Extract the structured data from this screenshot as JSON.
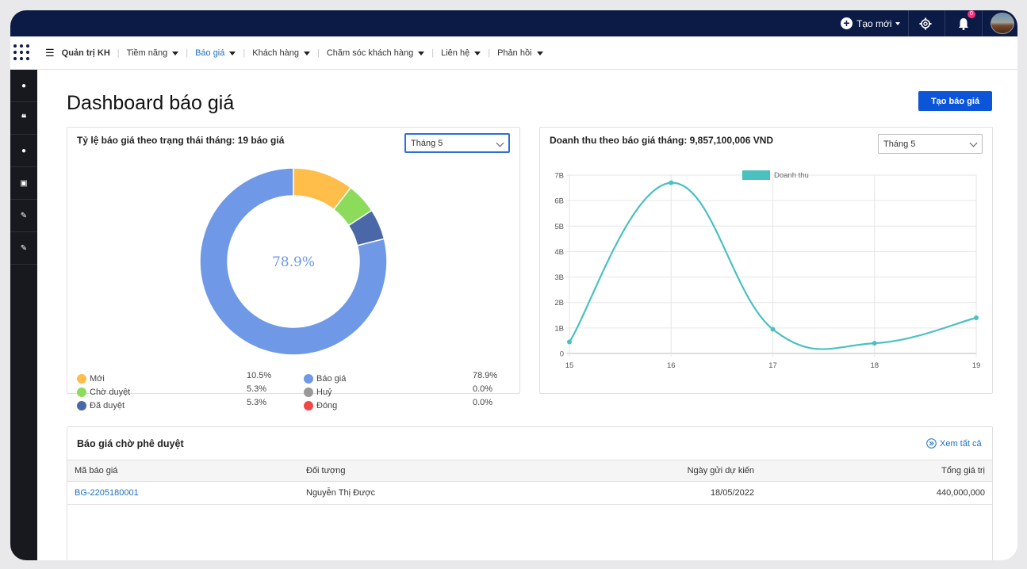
{
  "topbar": {
    "new_label": "Tạo mới",
    "notification_count": "0"
  },
  "nav": {
    "items": [
      {
        "label": "Quản trị KH",
        "bold": true,
        "caret": false
      },
      {
        "label": "Tiềm năng",
        "caret": true
      },
      {
        "label": "Báo giá",
        "caret": true,
        "active": true
      },
      {
        "label": "Khách hàng",
        "caret": true
      },
      {
        "label": "Chăm sóc khách hàng",
        "caret": true
      },
      {
        "label": "Liên hệ",
        "caret": true
      },
      {
        "label": "Phản hồi",
        "caret": true
      }
    ]
  },
  "page": {
    "title": "Dashboard báo giá",
    "create_button": "Tạo báo giá"
  },
  "ratio_card": {
    "title": "Tỷ lệ báo giá theo trạng thái tháng: 19 báo giá",
    "month": "Tháng 5",
    "center_label": "78.9%"
  },
  "revenue_card": {
    "title": "Doanh thu theo báo giá tháng: 9,857,100,006 VND",
    "month": "Tháng 5"
  },
  "colors": {
    "accent": "#0d55d8",
    "line": "#4bc0c0"
  },
  "chart_data": [
    {
      "type": "pie",
      "variant": "doughnut",
      "labels": [
        "Mới",
        "Chờ duyệt",
        "Đã duyệt",
        "Báo giá",
        "Huỷ",
        "Đóng"
      ],
      "values": [
        10.5,
        5.3,
        5.3,
        78.9,
        0.0,
        0.0
      ],
      "value_labels": [
        "10.5%",
        "5.3%",
        "5.3%",
        "78.9%",
        "0.0%",
        "0.0%"
      ],
      "colors": [
        "#ffbd4a",
        "#8cdb5b",
        "#4a67a8",
        "#6f98e6",
        "#999999",
        "#f24747"
      ]
    },
    {
      "type": "line",
      "series": [
        {
          "name": "Doanh thu",
          "x": [
            15,
            16,
            17,
            18,
            19
          ],
          "values": [
            0.45,
            6.7,
            0.95,
            0.4,
            1.4
          ]
        }
      ],
      "yticks": [
        "0",
        "1B",
        "2B",
        "3B",
        "4B",
        "5B",
        "6B",
        "7B"
      ],
      "ylim": [
        0,
        7
      ],
      "xticks": [
        "15",
        "16",
        "17",
        "18",
        "19"
      ],
      "legend": "top",
      "grid": true
    }
  ],
  "approval": {
    "title": "Báo giá chờ phê duyệt",
    "see_all": "Xem tất cả",
    "columns": [
      "Mã báo giá",
      "Đối tượng",
      "Ngày gửi dự kiến",
      "Tổng giá trị"
    ],
    "rows": [
      [
        "BG-2205180001",
        "Nguyễn Thị Được",
        "18/05/2022",
        "440,000,000"
      ]
    ]
  }
}
